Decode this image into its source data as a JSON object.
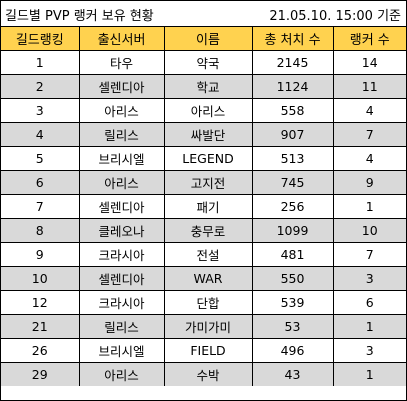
{
  "title": "길드별 PVP 랭커 보유 현황",
  "date": "21.05.10. 15:00 기준",
  "headers": [
    "길드랭킹",
    "출신서버",
    "이름",
    "총 처치 수",
    "랭커 수"
  ],
  "rows": [
    [
      "1",
      "타우",
      "약국",
      "2145",
      "14"
    ],
    [
      "2",
      "셀렌디아",
      "학교",
      "1124",
      "11"
    ],
    [
      "3",
      "아리스",
      "아리스",
      "558",
      "4"
    ],
    [
      "4",
      "릴리스",
      "싸발단",
      "907",
      "7"
    ],
    [
      "5",
      "브리시엘",
      "LEGEND",
      "513",
      "4"
    ],
    [
      "6",
      "아리스",
      "고지전",
      "745",
      "9"
    ],
    [
      "7",
      "셀렌디아",
      "패기",
      "256",
      "1"
    ],
    [
      "8",
      "클레오나",
      "충무로",
      "1099",
      "10"
    ],
    [
      "9",
      "크라시아",
      "전설",
      "481",
      "7"
    ],
    [
      "10",
      "셀렌디아",
      "WAR",
      "550",
      "3"
    ],
    [
      "12",
      "크라시아",
      "단합",
      "539",
      "6"
    ],
    [
      "21",
      "릴리스",
      "가미가미",
      "53",
      "1"
    ],
    [
      "26",
      "브리시엘",
      "FIELD",
      "496",
      "3"
    ],
    [
      "29",
      "아리스",
      "수박",
      "43",
      "1"
    ]
  ],
  "colors": {
    "header_bg": "#ffd24f",
    "alt_row_bg": "#d9d9d9",
    "row_bg": "#ffffff",
    "border": "#000000"
  }
}
